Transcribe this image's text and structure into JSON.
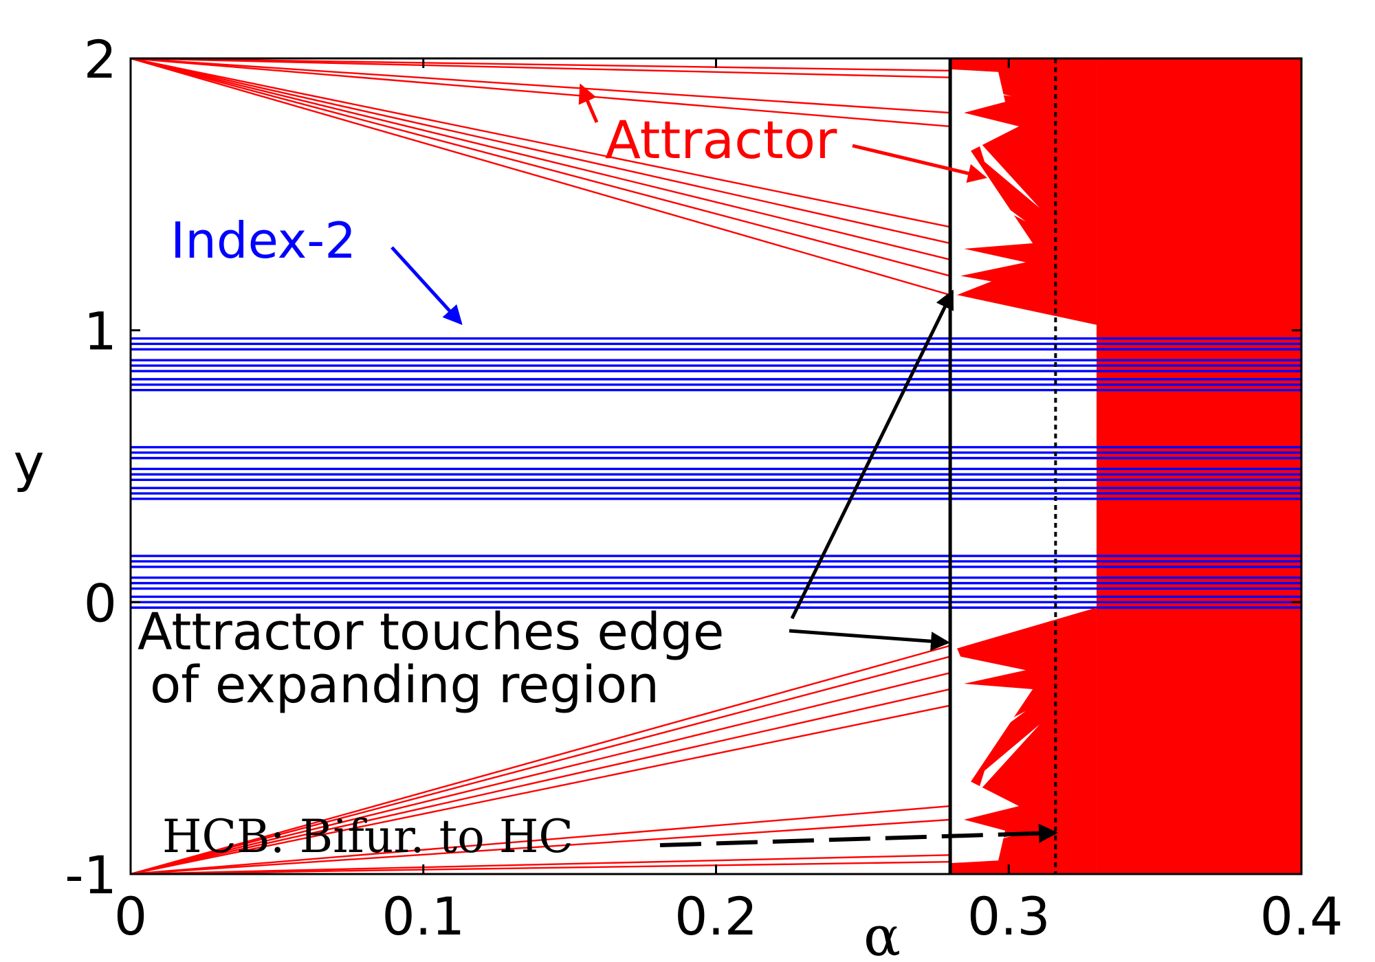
{
  "chart_data": {
    "type": "scatter",
    "xlabel": "α",
    "ylabel": "y",
    "xlim": [
      0,
      0.4
    ],
    "ylim": [
      -1,
      2
    ],
    "x_ticks": [
      "0",
      "0.1",
      "0.2",
      "0.3",
      "0.4"
    ],
    "y_ticks": [
      "-1",
      "0",
      "1",
      "2"
    ],
    "grid": false,
    "colors": {
      "attractor": "#ff0000",
      "index2": "#0000ff",
      "axes": "#000000"
    },
    "vertical_lines": [
      {
        "x": 0.28,
        "style": "solid"
      },
      {
        "x": 0.316,
        "style": "dotted"
      }
    ],
    "chaotic_region": {
      "x_start": 0.28,
      "x_end": 0.4,
      "dense_from": 0.33
    },
    "series": [
      {
        "name": "Attractor",
        "upper_branches": [
          {
            "x": [
              0,
              0.28
            ],
            "y": [
              2,
              1.955
            ]
          },
          {
            "x": [
              0,
              0.28
            ],
            "y": [
              2,
              1.93
            ]
          },
          {
            "x": [
              0,
              0.28
            ],
            "y": [
              2,
              1.8
            ]
          },
          {
            "x": [
              0,
              0.28
            ],
            "y": [
              2,
              1.75
            ]
          },
          {
            "x": [
              0,
              0.28
            ],
            "y": [
              2,
              1.38
            ]
          },
          {
            "x": [
              0,
              0.28
            ],
            "y": [
              2,
              1.32
            ]
          },
          {
            "x": [
              0,
              0.28
            ],
            "y": [
              2,
              1.26
            ]
          },
          {
            "x": [
              0,
              0.28
            ],
            "y": [
              2,
              1.2
            ]
          },
          {
            "x": [
              0,
              0.28
            ],
            "y": [
              2,
              1.13
            ]
          }
        ],
        "lower_branches": [
          {
            "x": [
              0,
              0.28
            ],
            "y": [
              -1,
              -0.955
            ]
          },
          {
            "x": [
              0,
              0.28
            ],
            "y": [
              -1,
              -0.93
            ]
          },
          {
            "x": [
              0,
              0.28
            ],
            "y": [
              -1,
              -0.8
            ]
          },
          {
            "x": [
              0,
              0.28
            ],
            "y": [
              -1,
              -0.75
            ]
          },
          {
            "x": [
              0,
              0.28
            ],
            "y": [
              -1,
              -0.38
            ]
          },
          {
            "x": [
              0,
              0.28
            ],
            "y": [
              -1,
              -0.32
            ]
          },
          {
            "x": [
              0,
              0.28
            ],
            "y": [
              -1,
              -0.26
            ]
          },
          {
            "x": [
              0,
              0.28
            ],
            "y": [
              -1,
              -0.2
            ]
          },
          {
            "x": [
              0,
              0.28
            ],
            "y": [
              -1,
              -0.16
            ]
          }
        ]
      },
      {
        "name": "Index-2",
        "y_levels": [
          0.97,
          0.95,
          0.93,
          0.89,
          0.87,
          0.85,
          0.82,
          0.8,
          0.78,
          0.57,
          0.55,
          0.53,
          0.49,
          0.47,
          0.45,
          0.42,
          0.4,
          0.38,
          0.17,
          0.15,
          0.13,
          0.09,
          0.07,
          0.05,
          0.02,
          0.0,
          -0.02
        ],
        "x_range": [
          0,
          0.4
        ]
      }
    ],
    "annotations": {
      "attractor": "Attractor",
      "index2": "Index-2",
      "touch_line1": "Attractor touches edge",
      "touch_line2": "of expanding region",
      "hcb_text": "HCB: Bifur. to ",
      "hcb_hc": "HC"
    }
  }
}
